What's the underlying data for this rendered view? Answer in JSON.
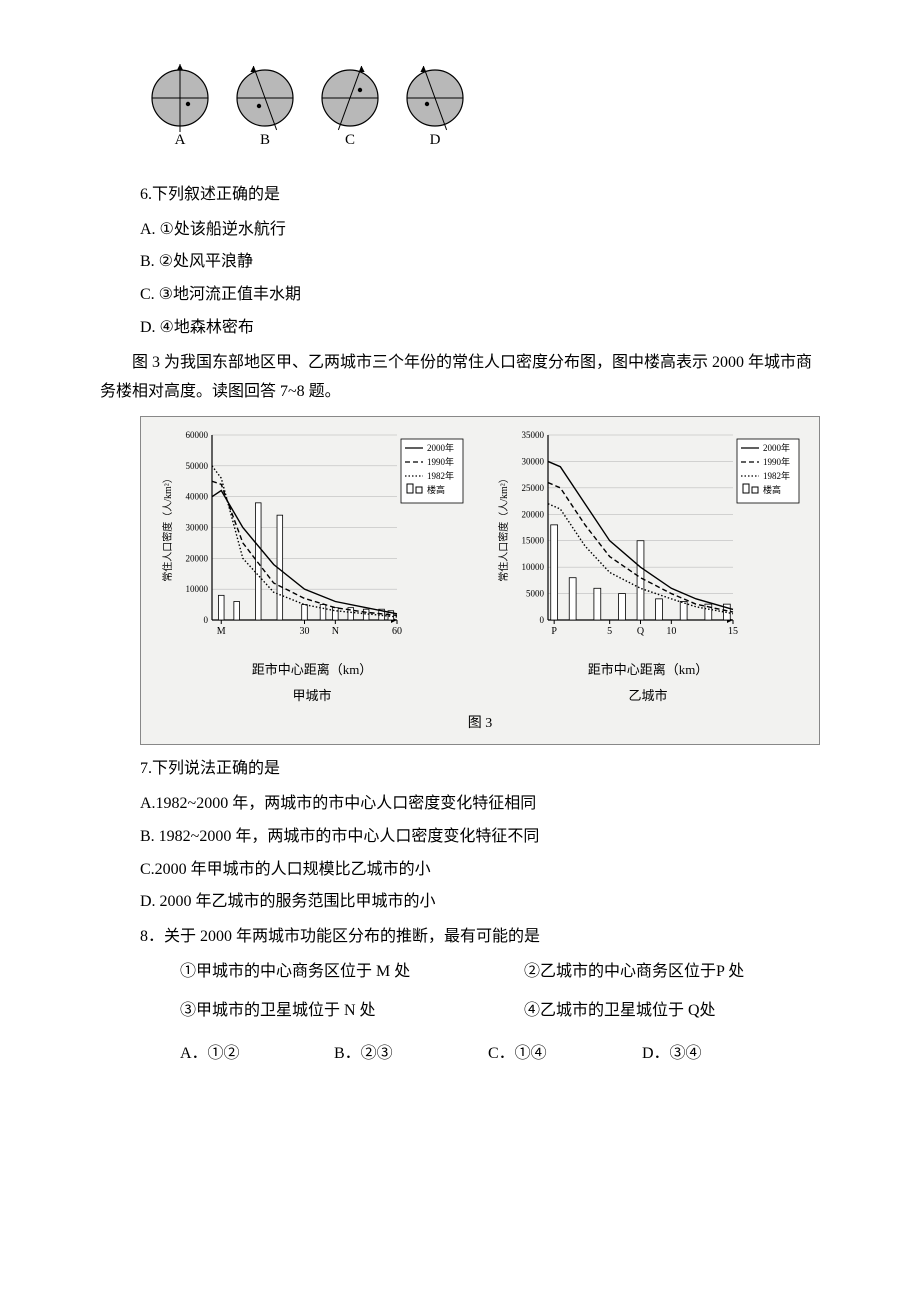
{
  "globes": {
    "labels": [
      "A",
      "B",
      "C",
      "D"
    ],
    "fill": "#b8b8b8",
    "stroke": "#000",
    "radius": 28,
    "axis_tilt_deg": [
      0,
      -20,
      20,
      -20
    ]
  },
  "q6": {
    "stem": "6.下列叙述正确的是",
    "options": {
      "A": "A. ①处该船逆水航行",
      "B": "B. ②处风平浪静",
      "C": "C. ③地河流正值丰水期",
      "D": "D. ④地森林密布"
    }
  },
  "fig3_intro": "图 3 为我国东部地区甲、乙两城市三个年份的常住人口密度分布图，图中楼高表示 2000 年城市商务楼相对高度。读图回答 7~8 题。",
  "fig3": {
    "caption": "图 3",
    "left": {
      "title": "甲城市",
      "xlabel": "距市中心距离（km）",
      "ylabel": "常住人口密度（人/km²）",
      "ylim": [
        0,
        60000
      ],
      "ytick_step": 10000,
      "xlim": [
        0,
        60
      ],
      "xticks": [
        "M",
        "30",
        "N",
        "60"
      ],
      "xtick_pos": [
        3,
        30,
        40,
        60
      ],
      "series": {
        "y2000": {
          "label": "2000年",
          "style": "solid",
          "color": "#000",
          "x": [
            0,
            3,
            10,
            20,
            30,
            40,
            50,
            60
          ],
          "y": [
            40000,
            42000,
            30000,
            18000,
            10000,
            6000,
            4000,
            2000
          ]
        },
        "y1990": {
          "label": "1990年",
          "style": "dash",
          "color": "#000",
          "x": [
            0,
            3,
            10,
            20,
            30,
            40,
            50,
            60
          ],
          "y": [
            45000,
            44000,
            25000,
            12000,
            7000,
            4000,
            2500,
            1500
          ]
        },
        "y1982": {
          "label": "1982年",
          "style": "dot",
          "color": "#000",
          "x": [
            0,
            3,
            10,
            20,
            30,
            40,
            50,
            60
          ],
          "y": [
            50000,
            46000,
            20000,
            9000,
            5000,
            3000,
            2000,
            1000
          ]
        }
      },
      "bars": {
        "label": "楼高",
        "color": "#fff",
        "stroke": "#000",
        "x": [
          3,
          8,
          15,
          22,
          30,
          36,
          40,
          45,
          50,
          55,
          58
        ],
        "h": [
          8000,
          6000,
          38000,
          34000,
          5000,
          5000,
          4000,
          4000,
          3500,
          3500,
          3000
        ]
      },
      "legend_items": [
        "2000年",
        "1990年",
        "1982年",
        "楼高"
      ]
    },
    "right": {
      "title": "乙城市",
      "xlabel": "距市中心距离（km）",
      "ylabel": "常住人口密度（人/km²）",
      "ylim": [
        0,
        35000
      ],
      "ytick_step": 5000,
      "xlim": [
        0,
        15
      ],
      "xticks": [
        "P",
        "5",
        "Q",
        "10",
        "15"
      ],
      "xtick_pos": [
        0.5,
        5,
        7.5,
        10,
        15
      ],
      "series": {
        "y2000": {
          "label": "2000年",
          "style": "solid",
          "color": "#000",
          "x": [
            0,
            1,
            3,
            5,
            7.5,
            10,
            12,
            15
          ],
          "y": [
            30000,
            29000,
            22000,
            15000,
            10000,
            6000,
            4000,
            2000
          ]
        },
        "y1990": {
          "label": "1990年",
          "style": "dash",
          "color": "#000",
          "x": [
            0,
            1,
            3,
            5,
            7.5,
            10,
            12,
            15
          ],
          "y": [
            26000,
            25000,
            18000,
            12000,
            8000,
            5000,
            3000,
            1500
          ]
        },
        "y1982": {
          "label": "1982年",
          "style": "dot",
          "color": "#000",
          "x": [
            0,
            1,
            3,
            5,
            7.5,
            10,
            12,
            15
          ],
          "y": [
            22000,
            21000,
            14000,
            9000,
            6000,
            4000,
            2500,
            1200
          ]
        }
      },
      "bars": {
        "label": "楼高",
        "color": "#fff",
        "stroke": "#000",
        "x": [
          0.5,
          2,
          4,
          6,
          7.5,
          9,
          11,
          13,
          14.5
        ],
        "h": [
          18000,
          8000,
          6000,
          5000,
          15000,
          4000,
          3500,
          3000,
          3000
        ]
      },
      "legend_items": [
        "2000年",
        "1990年",
        "1982年",
        "楼高"
      ]
    },
    "bg_color": "#f2f2f0",
    "grid_color": "#b0b0b0",
    "label_fontsize": 11
  },
  "q7": {
    "stem": "7.下列说法正确的是",
    "options": {
      "A": "A.1982~2000 年，两城市的市中心人口密度变化特征相同",
      "B": "B. 1982~2000 年，两城市的市中心人口密度变化特征不同",
      "C": "C.2000 年甲城市的人口规模比乙城市的小",
      "D": "D. 2000 年乙城市的服务范围比甲城市的小"
    }
  },
  "q8": {
    "stem": "8．关于 2000 年两城市功能区分布的推断，最有可能的是",
    "sub1": "①甲城市的中心商务区位于 M 处",
    "sub2": "②乙城市的中心商务区位于P 处",
    "sub3": "③甲城市的卫星城位于 N 处",
    "sub4": "④乙城市的卫星城位于 Q处",
    "choices": {
      "A": "A．①②",
      "B": "B．②③",
      "C": "C．①④",
      "D": "D．③④"
    }
  }
}
